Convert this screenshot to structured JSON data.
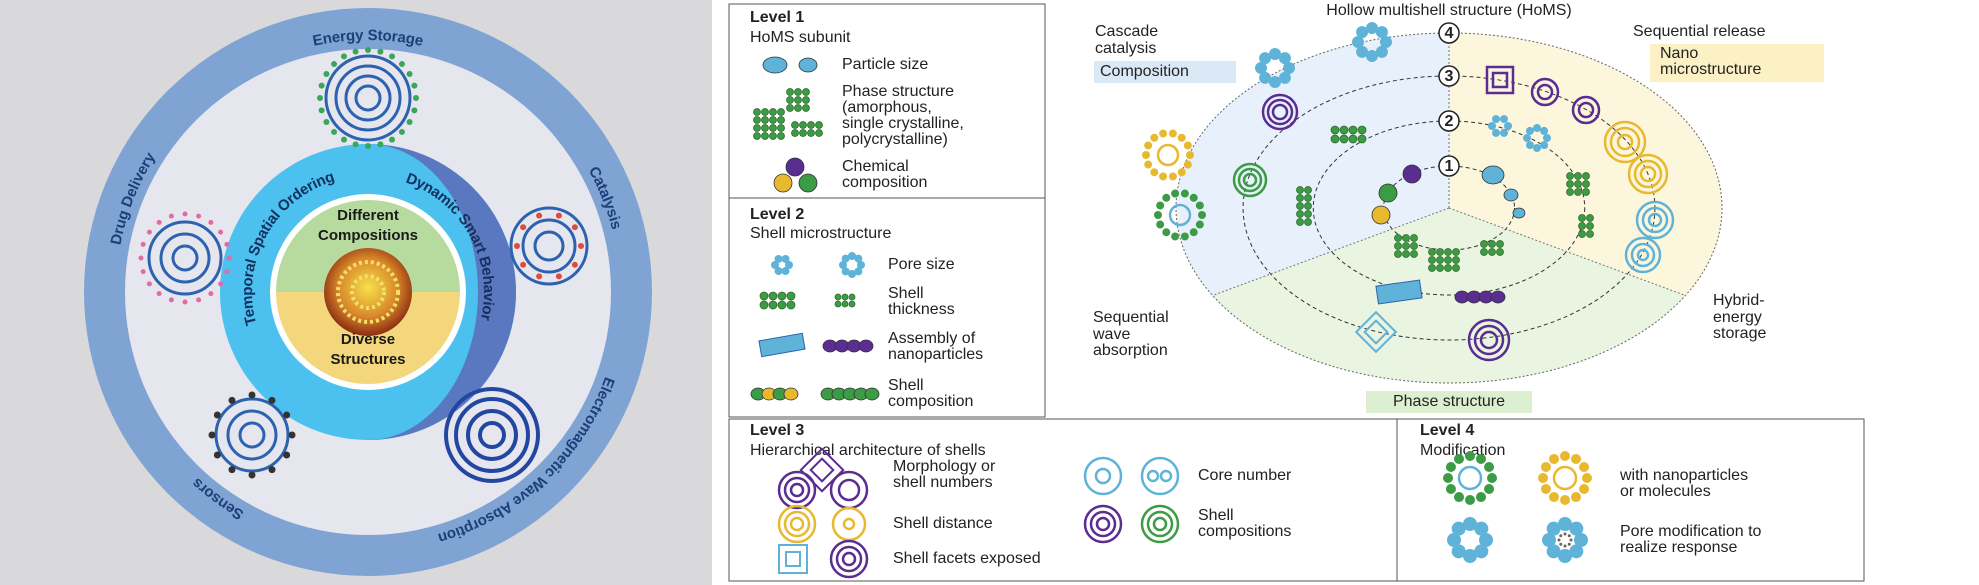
{
  "left_panel": {
    "applications": [
      "Energy Storage",
      "Catalysis",
      "Electromagnetic Wave Absorption",
      "Sensors",
      "Drug Delivery"
    ],
    "behaviors": [
      "Temporal Spatial Ordering",
      "Dynamic Smart Behavior"
    ],
    "core": [
      [
        "Different",
        "Compositions"
      ],
      [
        "Diverse",
        "Structures"
      ]
    ]
  },
  "level1": {
    "title": "Level 1",
    "subtitle": "HoMS subunit",
    "items": [
      [
        "Particle size"
      ],
      [
        "Phase structure",
        "(amorphous,",
        "single crystalline,",
        "polycrystalline)"
      ],
      [
        "Chemical",
        "composition"
      ]
    ]
  },
  "level2": {
    "title": "Level 2",
    "subtitle": "Shell microstructure",
    "items": [
      [
        "Pore size"
      ],
      [
        "Shell",
        "thickness"
      ],
      [
        "Assembly of",
        "nanoparticles"
      ],
      [
        "Shell",
        "composition"
      ]
    ]
  },
  "center": {
    "title": "Hollow multishell structure (HoMS)",
    "rings": [
      "1",
      "2",
      "3",
      "4"
    ],
    "cascade": [
      "Cascade",
      "catalysis"
    ],
    "composition": "Composition",
    "release": "Sequential release",
    "nano": [
      "Nano",
      "microstructure"
    ],
    "wave": [
      "Sequential",
      "wave",
      "absorption"
    ],
    "hybrid": [
      "Hybrid-",
      "energy",
      "storage"
    ],
    "phase": "Phase structure"
  },
  "level3": {
    "title": "Level 3",
    "subtitle": "Hierarchical architecture of shells",
    "items": [
      [
        "Morphology or",
        "shell numbers"
      ],
      [
        "Shell distance"
      ],
      [
        "Shell facets exposed"
      ],
      [
        "Core number"
      ],
      [
        "Shell",
        "compositions"
      ]
    ]
  },
  "level4": {
    "title": "Level 4",
    "subtitle": "Modification",
    "items": [
      [
        "with nanoparticles",
        "or molecules"
      ],
      [
        "Pore modification to",
        "realize response"
      ]
    ]
  }
}
